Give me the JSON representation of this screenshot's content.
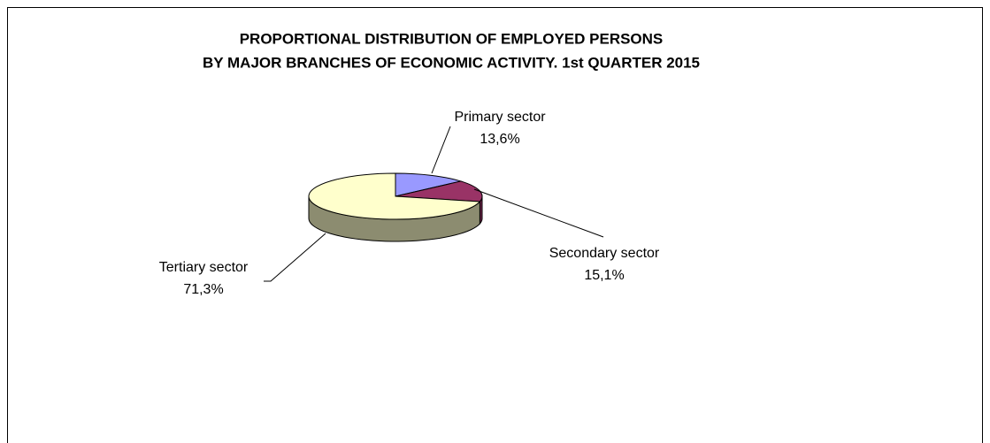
{
  "chart_data": {
    "type": "pie",
    "style": "3d",
    "title": [
      "PROPORTIONAL DISTRIBUTION OF EMPLOYED PERSONS",
      "BY MAJOR BRANCHES OF ECONOMIC ACTIVITY. 1st QUARTER 2015"
    ],
    "categories": [
      "Primary sector",
      "Secondary sector",
      "Tertiary sector"
    ],
    "values": [
      13.6,
      15.1,
      71.3
    ],
    "value_labels": [
      "13,6%",
      "15,1%",
      "71,3%"
    ],
    "colors": [
      "#9999ff",
      "#993366",
      "#ffffcc"
    ]
  }
}
